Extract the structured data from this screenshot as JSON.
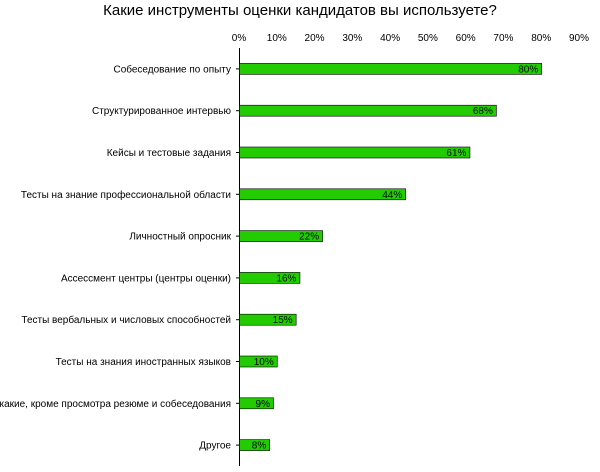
{
  "chart_data": {
    "type": "bar",
    "orientation": "horizontal",
    "title": "Какие инструменты оценки кандидатов вы используете?",
    "categories": [
      "Собеседование по опыту",
      "Структурированное интервью",
      "Кейсы и тестовые задания",
      "Тесты на знание профессиональной области",
      "Личностный опросник",
      "Ассессмент центры (центры оценки)",
      "Тесты вербальных и числовых способностей",
      "Тесты на знания иностранных языков",
      "Никакие, кроме просмотра резюме и собеседования",
      "Другое"
    ],
    "values": [
      80,
      68,
      61,
      44,
      22,
      16,
      15,
      10,
      9,
      8
    ],
    "data_labels": [
      "80%",
      "68%",
      "61%",
      "44%",
      "22%",
      "16%",
      "15%",
      "10%",
      "9%",
      "8%"
    ],
    "xlim": [
      0,
      90
    ],
    "x_ticks": [
      0,
      10,
      20,
      30,
      40,
      50,
      60,
      70,
      80,
      90
    ],
    "x_tick_labels": [
      "0%",
      "10%",
      "20%",
      "30%",
      "40%",
      "50%",
      "60%",
      "70%",
      "80%",
      "90%"
    ],
    "x_axis_position": "top",
    "grid": false,
    "legend": "none",
    "bar_color": "#22cc00",
    "bar_edge_color": "#000000",
    "xlabel": "",
    "ylabel": ""
  }
}
